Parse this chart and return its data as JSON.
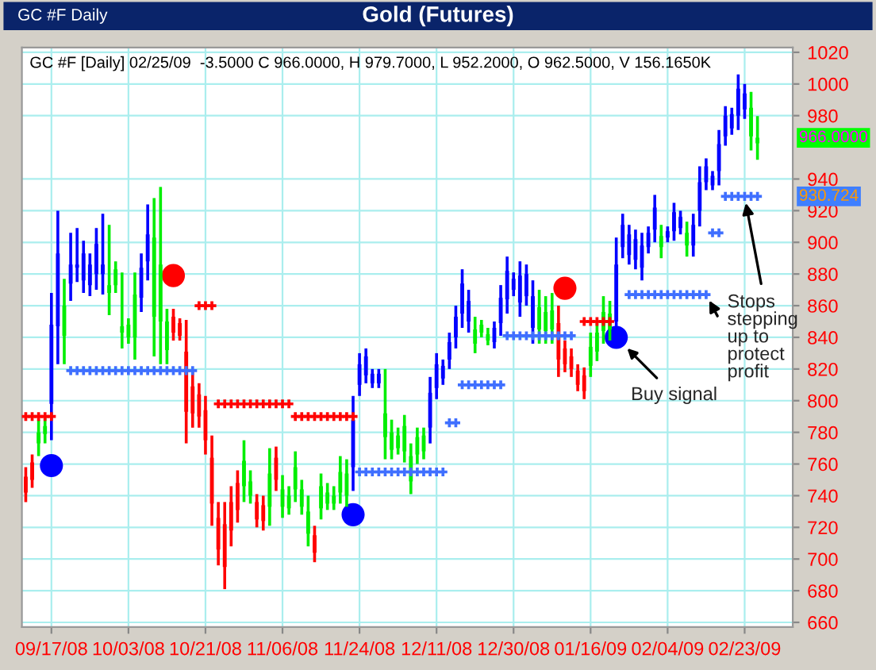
{
  "chart_data": {
    "type": "candlestick",
    "title": "Gold (Futures)",
    "subtitle": "GC #F [Daily] 02/25/09  -3.5000 C 966.0000, H 979.7000, L 952.2000, O 962.5000, V 156.1650K",
    "annotations": [
      "GC #F Daily",
      {
        "text": "Buy signal"
      },
      {
        "text": "Stops\nstepping\nup to\nprotect\nprofit"
      },
      "966.0000",
      "930.724"
    ],
    "categories": [
      null,
      null,
      null,
      null,
      "09/17/08",
      null,
      null,
      null,
      null,
      null,
      null,
      null,
      null,
      null,
      null,
      null,
      "10/03/08",
      null,
      null,
      null,
      null,
      null,
      null,
      null,
      null,
      null,
      null,
      null,
      "10/21/08",
      null,
      null,
      null,
      null,
      null,
      null,
      null,
      null,
      null,
      null,
      null,
      "11/06/08",
      null,
      null,
      null,
      null,
      null,
      null,
      null,
      null,
      null,
      null,
      null,
      "11/24/08",
      null,
      null,
      null,
      null,
      null,
      null,
      null,
      null,
      null,
      null,
      null,
      "12/11/08",
      null,
      null,
      null,
      null,
      null,
      null,
      null,
      null,
      null,
      null,
      null,
      "12/30/08",
      null,
      null,
      null,
      null,
      null,
      null,
      null,
      null,
      null,
      null,
      null,
      "01/16/09",
      null,
      null,
      null,
      null,
      null,
      null,
      null,
      null,
      null,
      null,
      null,
      "02/04/09",
      null,
      null,
      null,
      null,
      null,
      null,
      null,
      null,
      null,
      null,
      null,
      "02/23/09",
      null,
      null
    ],
    "ohlc": [
      [
        752,
        758,
        736,
        742
      ],
      [
        761,
        766,
        745,
        750
      ],
      [
        773,
        788,
        765,
        780
      ],
      [
        779,
        790,
        773,
        784
      ],
      [
        798,
        868,
        775,
        848
      ],
      [
        847,
        920,
        823,
        893
      ],
      [
        841,
        877,
        823,
        860
      ],
      [
        874,
        906,
        863,
        886
      ],
      [
        884,
        909,
        875,
        886
      ],
      [
        876,
        901,
        868,
        893
      ],
      [
        873,
        893,
        866,
        886
      ],
      [
        880,
        909,
        870,
        899
      ],
      [
        880,
        918,
        867,
        886
      ],
      [
        868,
        911,
        854,
        873
      ],
      [
        873,
        888,
        868,
        883
      ],
      [
        847,
        881,
        833,
        843
      ],
      [
        840,
        852,
        836,
        848
      ],
      [
        840,
        881,
        826,
        867
      ],
      [
        865,
        893,
        856,
        884
      ],
      [
        888,
        924,
        876,
        905
      ],
      [
        853,
        928,
        828,
        903
      ],
      [
        850,
        935,
        823,
        886
      ],
      [
        832,
        858,
        823,
        850
      ],
      [
        853,
        858,
        838,
        843
      ],
      [
        849,
        852,
        838,
        841
      ],
      [
        831,
        851,
        773,
        793
      ],
      [
        809,
        818,
        783,
        792
      ],
      [
        804,
        811,
        783,
        790
      ],
      [
        794,
        803,
        766,
        775
      ],
      [
        764,
        778,
        721,
        735
      ],
      [
        726,
        736,
        696,
        706
      ],
      [
        722,
        736,
        681,
        695
      ],
      [
        736,
        746,
        708,
        718
      ],
      [
        748,
        756,
        723,
        731
      ],
      [
        746,
        775,
        736,
        762
      ],
      [
        740,
        756,
        735,
        749
      ],
      [
        736,
        741,
        720,
        725
      ],
      [
        734,
        740,
        718,
        724
      ],
      [
        733,
        770,
        721,
        754
      ],
      [
        764,
        771,
        743,
        750
      ],
      [
        733,
        753,
        726,
        744
      ],
      [
        732,
        746,
        728,
        740
      ],
      [
        744,
        768,
        736,
        758
      ],
      [
        733,
        750,
        728,
        744
      ],
      [
        716,
        740,
        708,
        730
      ],
      [
        715,
        721,
        698,
        704
      ],
      [
        732,
        754,
        725,
        746
      ],
      [
        735,
        748,
        731,
        742
      ],
      [
        735,
        746,
        731,
        740
      ],
      [
        742,
        765,
        735,
        755
      ],
      [
        740,
        763,
        733,
        754
      ],
      [
        758,
        803,
        743,
        788
      ],
      [
        810,
        830,
        803,
        823
      ],
      [
        816,
        833,
        811,
        828
      ],
      [
        811,
        820,
        808,
        817
      ],
      [
        811,
        820,
        808,
        817
      ],
      [
        777,
        820,
        763,
        792
      ],
      [
        769,
        788,
        763,
        780
      ],
      [
        770,
        783,
        766,
        778
      ],
      [
        768,
        791,
        761,
        784
      ],
      [
        749,
        773,
        741,
        765
      ],
      [
        766,
        783,
        760,
        777
      ],
      [
        768,
        783,
        763,
        778
      ],
      [
        783,
        815,
        773,
        805
      ],
      [
        808,
        830,
        801,
        823
      ],
      [
        814,
        826,
        810,
        822
      ],
      [
        826,
        843,
        820,
        837
      ],
      [
        840,
        860,
        833,
        853
      ],
      [
        855,
        883,
        846,
        874
      ],
      [
        850,
        870,
        843,
        863
      ],
      [
        836,
        853,
        830,
        845
      ],
      [
        843,
        851,
        840,
        848
      ],
      [
        838,
        846,
        835,
        842
      ],
      [
        837,
        850,
        833,
        846
      ],
      [
        849,
        873,
        841,
        865
      ],
      [
        864,
        891,
        855,
        882
      ],
      [
        870,
        881,
        866,
        877
      ],
      [
        862,
        888,
        853,
        879
      ],
      [
        866,
        886,
        860,
        880
      ],
      [
        846,
        876,
        836,
        866
      ],
      [
        845,
        870,
        836,
        859
      ],
      [
        844,
        866,
        836,
        856
      ],
      [
        845,
        868,
        836,
        857
      ],
      [
        849,
        860,
        815,
        826
      ],
      [
        833,
        838,
        818,
        823
      ],
      [
        828,
        833,
        815,
        820
      ],
      [
        819,
        823,
        806,
        810
      ],
      [
        816,
        821,
        801,
        806
      ],
      [
        822,
        843,
        815,
        834
      ],
      [
        831,
        850,
        825,
        843
      ],
      [
        844,
        866,
        836,
        856
      ],
      [
        845,
        863,
        838,
        855
      ],
      [
        850,
        903,
        833,
        886
      ],
      [
        897,
        918,
        890,
        911
      ],
      [
        892,
        911,
        886,
        905
      ],
      [
        889,
        908,
        883,
        902
      ],
      [
        884,
        906,
        876,
        898
      ],
      [
        897,
        910,
        893,
        906
      ],
      [
        908,
        930,
        900,
        922
      ],
      [
        897,
        911,
        890,
        904
      ],
      [
        903,
        910,
        900,
        907
      ],
      [
        907,
        925,
        901,
        919
      ],
      [
        909,
        920,
        905,
        916
      ],
      [
        898,
        913,
        891,
        906
      ],
      [
        898,
        918,
        891,
        911
      ],
      [
        920,
        948,
        910,
        938
      ],
      [
        938,
        953,
        933,
        948
      ],
      [
        936,
        945,
        933,
        942
      ],
      [
        945,
        971,
        936,
        962
      ],
      [
        967,
        986,
        961,
        980
      ],
      [
        972,
        985,
        968,
        981
      ],
      [
        980,
        1006,
        971,
        997
      ],
      [
        984,
        1000,
        978,
        994
      ],
      [
        967,
        995,
        958,
        985
      ],
      [
        962.5,
        979.7,
        952.2,
        966.0
      ]
    ],
    "colors": [
      "#ff0000",
      "#ff0000",
      "#00ee00",
      "#00ee00",
      "#0000ff",
      "#0000ff",
      "#00ee00",
      "#0000ff",
      "#0000ff",
      "#0000ff",
      "#0000ff",
      "#0000ff",
      "#0000ff",
      "#00ee00",
      "#00ee00",
      "#00ee00",
      "#00ee00",
      "#00ee00",
      "#0000ff",
      "#0000ff",
      "#00ee00",
      "#00ee00",
      "#00ee00",
      "#ff0000",
      "#ff0000",
      "#ff0000",
      "#ff0000",
      "#ff0000",
      "#ff0000",
      "#ff0000",
      "#ff0000",
      "#ff0000",
      "#ff0000",
      "#ff0000",
      "#00ee00",
      "#00ee00",
      "#ff0000",
      "#ff0000",
      "#00ee00",
      "#ff0000",
      "#00ee00",
      "#00ee00",
      "#00ee00",
      "#00ee00",
      "#00ee00",
      "#ff0000",
      "#00ee00",
      "#00ee00",
      "#00ee00",
      "#00ee00",
      "#00ee00",
      "#0000ff",
      "#0000ff",
      "#0000ff",
      "#0000ff",
      "#0000ff",
      "#00ee00",
      "#00ee00",
      "#00ee00",
      "#00ee00",
      "#00ee00",
      "#00ee00",
      "#00ee00",
      "#0000ff",
      "#0000ff",
      "#0000ff",
      "#0000ff",
      "#0000ff",
      "#0000ff",
      "#0000ff",
      "#00ee00",
      "#00ee00",
      "#00ee00",
      "#0000ff",
      "#0000ff",
      "#0000ff",
      "#0000ff",
      "#0000ff",
      "#0000ff",
      "#0000ff",
      "#00ee00",
      "#00ee00",
      "#00ee00",
      "#ff0000",
      "#ff0000",
      "#ff0000",
      "#ff0000",
      "#ff0000",
      "#00ee00",
      "#00ee00",
      "#00ee00",
      "#00ee00",
      "#0000ff",
      "#0000ff",
      "#0000ff",
      "#0000ff",
      "#0000ff",
      "#0000ff",
      "#0000ff",
      "#00ee00",
      "#0000ff",
      "#0000ff",
      "#0000ff",
      "#00ee00",
      "#0000ff",
      "#0000ff",
      "#0000ff",
      "#0000ff",
      "#0000ff",
      "#0000ff",
      "#0000ff",
      "#0000ff",
      "#0000ff",
      "#00ee00",
      "#00ee00"
    ],
    "series": [
      {
        "type": "scatter",
        "marker": "cross",
        "color": "#ff0000",
        "values": [
          790,
          790,
          790,
          790,
          790,
          null,
          null,
          null,
          null,
          null,
          null,
          null,
          null,
          null,
          null,
          null,
          null,
          null,
          null,
          null,
          null,
          null,
          null,
          null,
          null,
          null,
          null,
          860,
          860,
          860,
          798,
          798,
          798,
          798,
          798,
          798,
          798,
          798,
          798,
          798,
          798,
          798,
          790,
          790,
          790,
          790,
          790,
          790,
          790,
          790,
          790,
          790,
          null,
          null,
          null,
          null,
          null,
          null,
          null,
          null,
          null,
          null,
          null,
          null,
          null,
          null,
          null,
          null,
          null,
          null,
          null,
          null,
          null,
          null,
          null,
          null,
          null,
          null,
          null,
          null,
          null,
          null,
          null,
          null,
          null,
          null,
          null,
          850,
          850,
          850,
          850,
          850,
          null,
          null,
          null,
          null,
          null,
          null,
          null,
          null,
          null,
          null,
          null,
          null,
          null,
          null,
          null,
          null,
          null,
          null,
          null,
          null,
          null,
          null,
          null
        ]
      },
      {
        "type": "scatter",
        "marker": "cross",
        "color": "#3f6fff",
        "values": [
          null,
          null,
          null,
          null,
          null,
          null,
          null,
          819,
          819,
          819,
          819,
          819,
          819,
          819,
          819,
          819,
          819,
          819,
          819,
          819,
          819,
          819,
          819,
          819,
          819,
          819,
          819,
          null,
          null,
          null,
          null,
          null,
          null,
          null,
          null,
          null,
          null,
          null,
          null,
          null,
          null,
          null,
          null,
          null,
          null,
          null,
          null,
          null,
          null,
          null,
          null,
          null,
          755,
          755,
          755,
          755,
          755,
          755,
          755,
          755,
          755,
          755,
          755,
          755,
          755,
          755,
          786,
          786,
          810,
          810,
          810,
          810,
          810,
          810,
          810,
          841,
          841,
          841,
          841,
          841,
          841,
          841,
          841,
          841,
          841,
          841,
          null,
          null,
          null,
          null,
          null,
          null,
          null,
          null,
          867,
          867,
          867,
          867,
          867,
          867,
          867,
          867,
          867,
          867,
          867,
          867,
          867,
          906,
          906,
          929,
          929,
          929,
          929,
          929,
          929
        ]
      },
      {
        "type": "scatter",
        "marker": "circle",
        "color": "#0000ff",
        "values": [
          null,
          null,
          null,
          null,
          759,
          null,
          null,
          null,
          null,
          null,
          null,
          null,
          null,
          null,
          null,
          null,
          null,
          null,
          null,
          null,
          null,
          null,
          null,
          null,
          null,
          null,
          null,
          null,
          null,
          null,
          null,
          null,
          null,
          null,
          null,
          null,
          null,
          null,
          null,
          null,
          null,
          null,
          null,
          null,
          null,
          null,
          null,
          null,
          null,
          null,
          null,
          728,
          null,
          null,
          null,
          null,
          null,
          null,
          null,
          null,
          null,
          null,
          null,
          null,
          null,
          null,
          null,
          null,
          null,
          null,
          null,
          null,
          null,
          null,
          null,
          null,
          null,
          null,
          null,
          null,
          null,
          null,
          null,
          null,
          null,
          null,
          null,
          null,
          null,
          null,
          null,
          null,
          840,
          null,
          null,
          null,
          null,
          null,
          null,
          null,
          null,
          null,
          null,
          null,
          null,
          null,
          null,
          null,
          null,
          null,
          null,
          null,
          null,
          null,
          null
        ]
      },
      {
        "type": "scatter",
        "marker": "circle",
        "color": "#ff0000",
        "values": [
          null,
          null,
          null,
          null,
          null,
          null,
          null,
          null,
          null,
          null,
          null,
          null,
          null,
          null,
          null,
          null,
          null,
          null,
          null,
          null,
          null,
          null,
          null,
          879,
          null,
          null,
          null,
          null,
          null,
          null,
          null,
          null,
          null,
          null,
          null,
          null,
          null,
          null,
          null,
          null,
          null,
          null,
          null,
          null,
          null,
          null,
          null,
          null,
          null,
          null,
          null,
          null,
          null,
          null,
          null,
          null,
          null,
          null,
          null,
          null,
          null,
          null,
          null,
          null,
          null,
          null,
          null,
          null,
          null,
          null,
          null,
          null,
          null,
          null,
          null,
          null,
          null,
          null,
          null,
          null,
          null,
          null,
          null,
          null,
          871,
          null,
          null,
          null,
          null,
          null,
          null,
          null,
          null,
          null,
          null,
          null,
          null,
          null,
          null,
          null,
          null,
          null,
          null,
          null,
          null,
          null,
          null,
          null,
          null,
          null,
          null,
          null,
          null,
          null,
          null
        ]
      }
    ],
    "ylim": [
      657,
      1023
    ],
    "yticks": [
      660,
      680,
      700,
      720,
      740,
      760,
      780,
      800,
      820,
      840,
      860,
      880,
      900,
      920,
      940,
      980,
      1000,
      1020
    ],
    "grid": true,
    "legend": false
  }
}
